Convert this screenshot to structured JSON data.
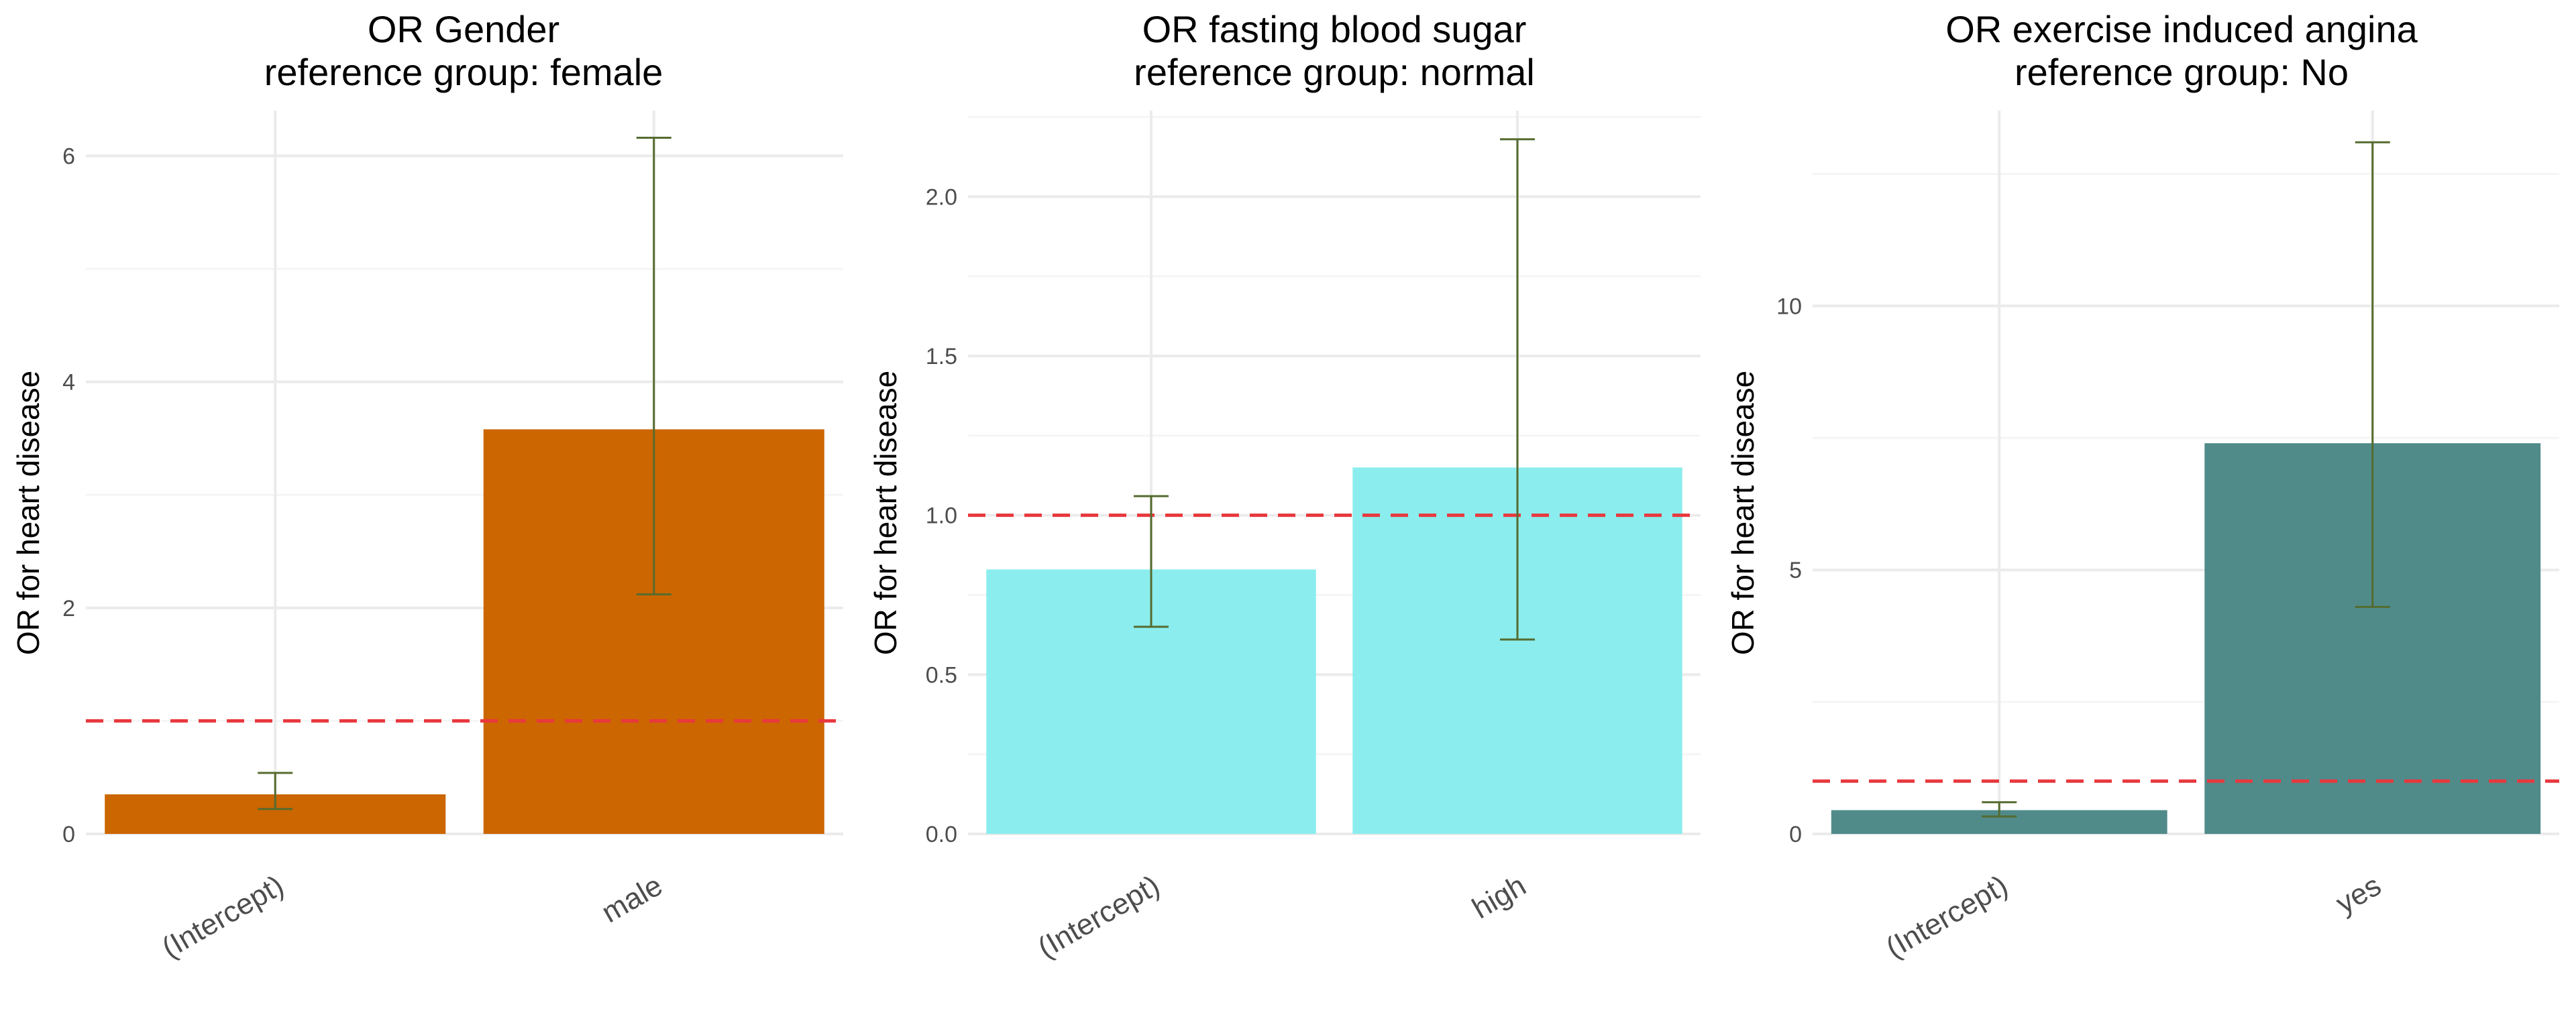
{
  "chart_data": [
    {
      "type": "bar",
      "title": "OR Gender",
      "subtitle": "reference group: female",
      "ylabel": "OR for heart disease",
      "categories": [
        "(Intercept)",
        "male"
      ],
      "values": [
        0.35,
        3.58
      ],
      "ci_low": [
        0.22,
        2.12
      ],
      "ci_high": [
        0.54,
        6.16
      ],
      "ylim": [
        0,
        6.4
      ],
      "yticks": [
        0,
        2,
        4,
        6
      ],
      "ytick_labels": [
        "0",
        "2",
        "4",
        "6"
      ],
      "reference_line": 1,
      "bar_color": "#CC6600",
      "grid": true
    },
    {
      "type": "bar",
      "title": "OR fasting blood sugar",
      "subtitle": "reference group: normal",
      "ylabel": "OR for heart disease",
      "categories": [
        "(Intercept)",
        "high"
      ],
      "values": [
        0.83,
        1.15
      ],
      "ci_low": [
        0.65,
        0.61
      ],
      "ci_high": [
        1.06,
        2.18
      ],
      "ylim": [
        0,
        2.27
      ],
      "yticks": [
        0,
        0.5,
        1.0,
        1.5,
        2.0
      ],
      "ytick_labels": [
        "0.0",
        "0.5",
        "1.0",
        "1.5",
        "2.0"
      ],
      "reference_line": 1,
      "bar_color": "#8BEDED",
      "grid": true
    },
    {
      "type": "bar",
      "title": "OR exercise induced angina",
      "subtitle": "reference group: No",
      "ylabel": "OR for heart disease",
      "categories": [
        "(Intercept)",
        "yes"
      ],
      "values": [
        0.45,
        7.4
      ],
      "ci_low": [
        0.33,
        4.3
      ],
      "ci_high": [
        0.6,
        13.1
      ],
      "ylim": [
        0,
        13.7
      ],
      "yticks": [
        0,
        5,
        10
      ],
      "ytick_labels": [
        "0",
        "5",
        "10"
      ],
      "reference_line": 1,
      "bar_color": "#508B8A",
      "grid": true
    }
  ],
  "colors": {
    "error_bar": "#556B2F",
    "reference_line": "#E8383D",
    "grid_major": "#EBEBEB",
    "grid_minor": "#F5F5F5"
  }
}
